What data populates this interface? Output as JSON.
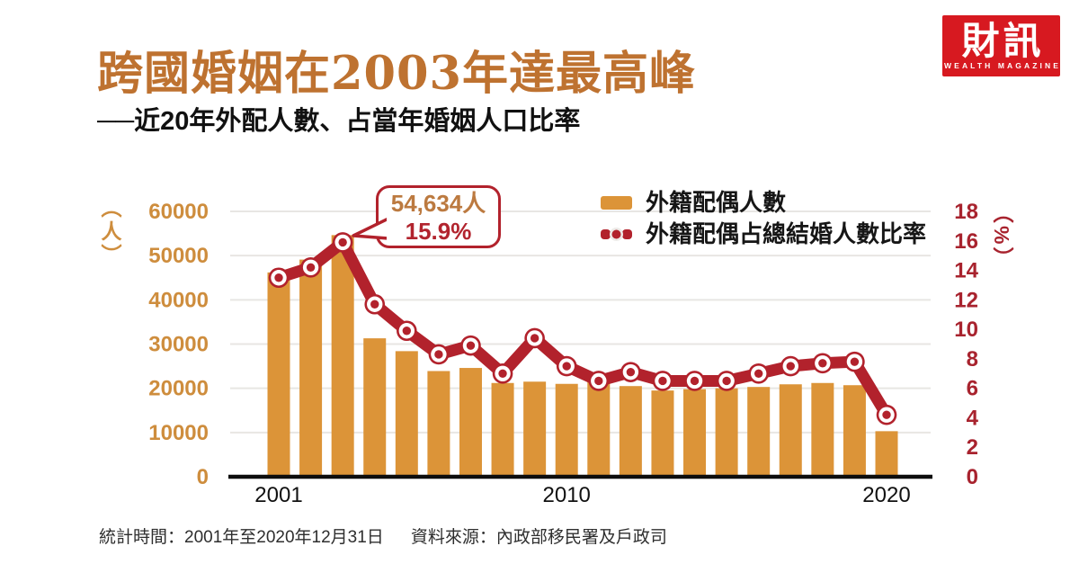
{
  "header": {
    "title": "跨國婚姻在2003年達最高峰",
    "subtitle": "──近20年外配人數、占當年婚姻人口比率"
  },
  "logo": {
    "name_zh": "財訊",
    "name_en": "WEALTH MAGAZINE",
    "bg_color": "#D71920"
  },
  "legend": [
    {
      "label": "外籍配偶人數",
      "marker": "bar-swatch",
      "color": "#DC9438"
    },
    {
      "label": "外籍配偶占總結婚人數比率",
      "marker": "line-dot-swatch",
      "color": "#B2222C"
    }
  ],
  "callout": {
    "line1": "54,634人",
    "line2": "15.9%",
    "points_to_year": 2003
  },
  "footer": {
    "stat_time": "統計時間：2001年至2020年12月31日",
    "source": "資料來源：內政部移民署及戶政司"
  },
  "colors": {
    "bar": "#DC9438",
    "line": "#B2222C",
    "left_axis_text": "#CE8D3D",
    "right_axis_text": "#A8232E",
    "grid": "#E8E6E3",
    "baseline": "#0D0D0D",
    "title": "#BE7230"
  },
  "chart_data": {
    "type": "bar+line",
    "x": [
      2001,
      2002,
      2003,
      2004,
      2005,
      2006,
      2007,
      2008,
      2009,
      2010,
      2011,
      2012,
      2013,
      2014,
      2015,
      2016,
      2017,
      2018,
      2019,
      2020
    ],
    "x_tick_labels": [
      {
        "label": "2001",
        "index": 0
      },
      {
        "label": "2010",
        "index": 9
      },
      {
        "label": "2020",
        "index": 19
      }
    ],
    "series": [
      {
        "name": "外籍配偶人數",
        "type": "bar",
        "axis": "left",
        "color": "#DC9438",
        "values": [
          46200,
          49100,
          54634,
          31300,
          28400,
          23900,
          24600,
          21200,
          21500,
          21000,
          21400,
          20500,
          19500,
          19800,
          20000,
          20300,
          20900,
          21200,
          20700,
          10300
        ]
      },
      {
        "name": "外籍配偶占總結婚人數比率",
        "type": "line",
        "axis": "right",
        "color": "#B2222C",
        "values": [
          13.5,
          14.2,
          15.9,
          11.7,
          9.9,
          8.3,
          8.9,
          7.0,
          9.4,
          7.5,
          6.5,
          7.1,
          6.5,
          6.5,
          6.5,
          7.0,
          7.5,
          7.7,
          7.8,
          4.2
        ]
      }
    ],
    "left_axis": {
      "unit": "（人）",
      "ticks": [
        0,
        10000,
        20000,
        30000,
        40000,
        50000,
        60000
      ],
      "min": 0,
      "max": 60000
    },
    "right_axis": {
      "unit": "（%）",
      "ticks": [
        0,
        2,
        4,
        6,
        8,
        10,
        12,
        14,
        16,
        18
      ],
      "min": 0,
      "max": 18
    },
    "grid": true,
    "legend_position": "top-right",
    "annotation": {
      "year": 2003,
      "bar_value": 54634,
      "pct_value": 15.9,
      "text": "54,634人 15.9%"
    }
  }
}
